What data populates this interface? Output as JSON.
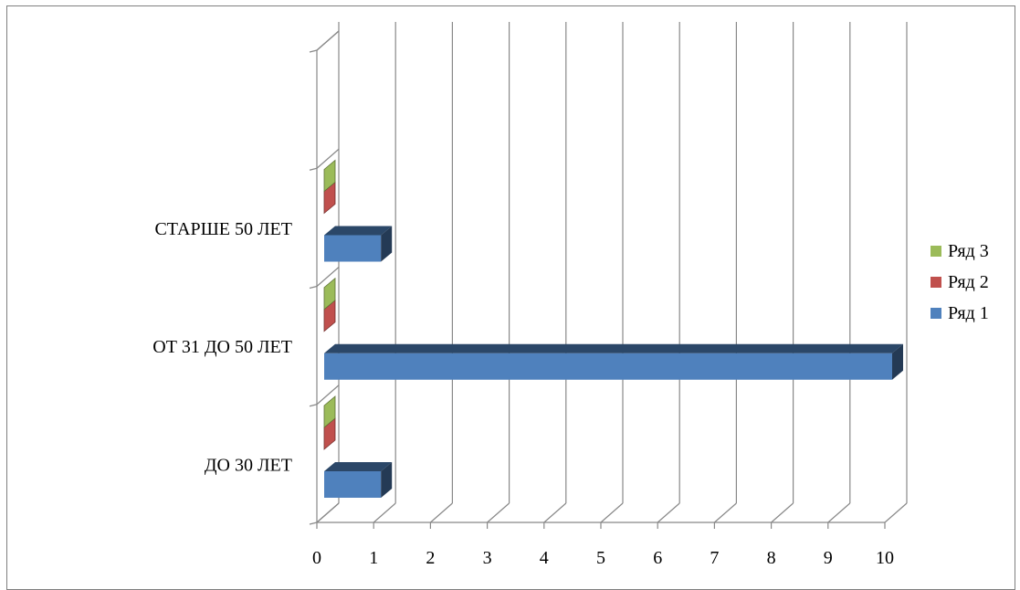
{
  "chart_data": {
    "type": "bar",
    "orientation": "horizontal",
    "style": "3d-clustered",
    "categories": [
      "ДО 30 ЛЕТ",
      "ОТ 31 ДО 50 ЛЕТ",
      "СТАРШЕ 50 ЛЕТ"
    ],
    "series": [
      {
        "name": "Ряд 1",
        "values": [
          1,
          10,
          1
        ],
        "color": "#4f81bd"
      },
      {
        "name": "Ряд 2",
        "values": [
          0,
          0,
          0
        ],
        "color": "#c0504d"
      },
      {
        "name": "Ряд 3",
        "values": [
          0,
          0,
          0
        ],
        "color": "#9bbb59"
      }
    ],
    "xlim": [
      0,
      10
    ],
    "xticks": [
      "0",
      "1",
      "2",
      "3",
      "4",
      "5",
      "6",
      "7",
      "8",
      "9",
      "10"
    ],
    "grid": true,
    "legend_position": "right",
    "title": "",
    "xlabel": "",
    "ylabel": ""
  }
}
